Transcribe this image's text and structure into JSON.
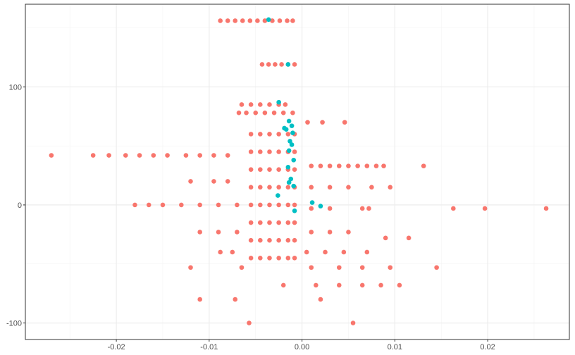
{
  "chart_data": {
    "type": "scatter",
    "xlim": [
      -0.0298,
      0.0288
    ],
    "ylim": [
      -114,
      170
    ],
    "xticks": [
      -0.02,
      -0.01,
      {
        "value": 0,
        "label": "0.00"
      },
      0.01,
      0.02
    ],
    "yticks": [
      -100,
      0,
      100
    ],
    "xminor": [
      -0.025,
      -0.015,
      -0.005,
      0.005,
      0.015,
      0.025
    ],
    "yminor": [
      -50,
      50,
      150
    ],
    "grid": true,
    "series": [
      {
        "color": "#F8766D",
        "x": [
          -0.0088,
          -0.008,
          -0.0072,
          -0.0064,
          -0.0056,
          -0.0048,
          -0.004,
          -0.0032,
          -0.0024,
          -0.0016,
          -0.001,
          -0.0043,
          -0.0036,
          -0.0029,
          -0.0022,
          -0.0015,
          -0.0008,
          -0.0065,
          -0.0055,
          -0.0045,
          -0.0035,
          -0.0025,
          -0.0018,
          -0.0068,
          -0.006,
          -0.005,
          -0.004,
          -0.003,
          -0.002,
          -0.001,
          0.0006,
          0.0022,
          0.0046,
          -0.0055,
          -0.0045,
          -0.0035,
          -0.0025,
          -0.0015,
          -0.0008,
          -0.0055,
          -0.0045,
          -0.0035,
          -0.0025,
          -0.0015,
          -0.0008,
          -0.0055,
          -0.0045,
          -0.0035,
          -0.0025,
          -0.0015,
          -0.0008,
          -0.0055,
          -0.0045,
          -0.0035,
          -0.0025,
          -0.0015,
          -0.0008,
          -0.0055,
          -0.0045,
          -0.0035,
          -0.0025,
          -0.0015,
          -0.0008,
          -0.0055,
          -0.0045,
          -0.0035,
          -0.0025,
          -0.0015,
          -0.0008,
          -0.0055,
          -0.0045,
          -0.0035,
          -0.0025,
          -0.0015,
          -0.0008,
          -0.0055,
          -0.0045,
          -0.0035,
          -0.0025,
          -0.0015,
          -0.0008,
          -0.027,
          -0.0225,
          -0.0208,
          -0.019,
          -0.0175,
          -0.016,
          -0.0145,
          -0.0125,
          -0.011,
          -0.0095,
          -0.008,
          -0.018,
          -0.0165,
          -0.015,
          -0.013,
          -0.011,
          -0.009,
          -0.007,
          -0.012,
          -0.0095,
          -0.008,
          0.001,
          0.002,
          0.003,
          0.004,
          0.005,
          0.006,
          0.007,
          0.008,
          0.0088,
          0.0131,
          0.001,
          0.003,
          0.005,
          0.0075,
          0.0095,
          0.001,
          0.003,
          0.0065,
          0.0072,
          0.0163,
          0.0197,
          0.0263,
          -0.011,
          -0.009,
          -0.007,
          0.001,
          0.003,
          0.005,
          -0.0088,
          -0.0075,
          0.0005,
          0.0025,
          0.0045,
          0.007,
          -0.012,
          -0.0065,
          0.001,
          0.004,
          0.0065,
          0.0095,
          0.0145,
          -0.002,
          0.0015,
          0.004,
          0.0065,
          0.0085,
          0.0105,
          -0.011,
          -0.0072,
          0.002,
          -0.0057,
          0.0055,
          0.009,
          0.0115
        ],
        "values": [
          156,
          156,
          156,
          156,
          156,
          156,
          156,
          156,
          156,
          156,
          156,
          119,
          119,
          119,
          119,
          119,
          119,
          85,
          85,
          85,
          85,
          85,
          85,
          78,
          78,
          78,
          78,
          78,
          78,
          78,
          70,
          70,
          70,
          60,
          60,
          60,
          60,
          60,
          60,
          45,
          45,
          45,
          45,
          45,
          45,
          30,
          30,
          30,
          30,
          30,
          30,
          15,
          15,
          15,
          15,
          15,
          15,
          0,
          0,
          0,
          0,
          0,
          0,
          -15,
          -15,
          -15,
          -15,
          -15,
          -15,
          -30,
          -30,
          -30,
          -30,
          -30,
          -30,
          -45,
          -45,
          -45,
          -45,
          -45,
          -45,
          42,
          42,
          42,
          42,
          42,
          42,
          42,
          42,
          42,
          42,
          42,
          0,
          0,
          0,
          0,
          0,
          0,
          0,
          20,
          20,
          20,
          33,
          33,
          33,
          33,
          33,
          33,
          33,
          33,
          33,
          33,
          15,
          15,
          15,
          15,
          15,
          -3,
          -3,
          -3,
          -3,
          -3,
          -3,
          -3,
          -23,
          -23,
          -23,
          -23,
          -23,
          -23,
          -40,
          -40,
          -40,
          -40,
          -40,
          -40,
          -53,
          -53,
          -53,
          -53,
          -53,
          -53,
          -53,
          -68,
          -68,
          -68,
          -68,
          -68,
          -68,
          -80,
          -80,
          -80,
          -100,
          -100,
          -28,
          -28
        ]
      },
      {
        "color": "#00BFC4",
        "x": [
          -0.0036,
          -0.0015,
          -0.0025,
          -0.0019,
          -0.0014,
          -0.0011,
          -0.001,
          -0.0013,
          -0.0014,
          -0.0009,
          -0.0015,
          -0.0012,
          -0.0014,
          -0.0009,
          -0.0026,
          -0.0008,
          0.0011,
          0.002,
          -0.0011,
          -0.0017
        ],
        "values": [
          157,
          119,
          87,
          65,
          71,
          67,
          61,
          54,
          46,
          38,
          32,
          22,
          19,
          16,
          8,
          -5,
          2,
          -1,
          51,
          64
        ]
      }
    ]
  }
}
